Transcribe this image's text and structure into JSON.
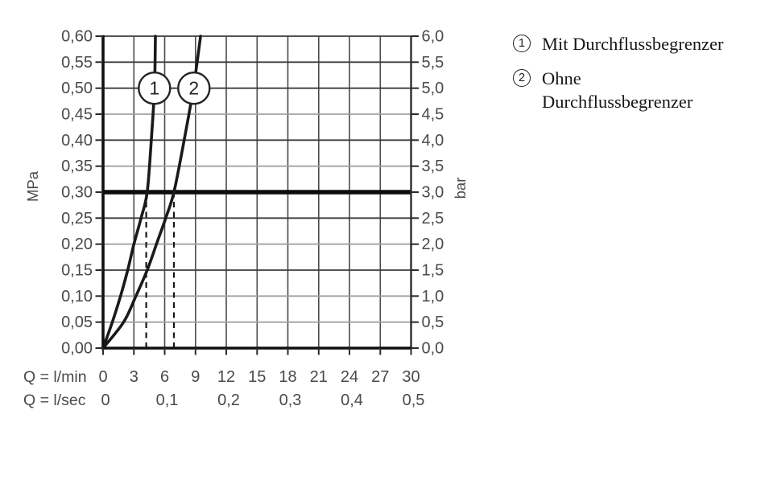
{
  "chart_data": {
    "type": "line",
    "x_axis_lmin": {
      "label": "Q = l/min",
      "range": [
        0,
        30
      ],
      "ticks": [
        "0",
        "3",
        "6",
        "9",
        "12",
        "15",
        "18",
        "21",
        "24",
        "27",
        "30"
      ]
    },
    "x_axis_lsec": {
      "label": "Q = l/sec",
      "ticks": [
        {
          "text": "0",
          "q": 0
        },
        {
          "text": "0,1",
          "q": 6
        },
        {
          "text": "0,2",
          "q": 12
        },
        {
          "text": "0,3",
          "q": 18
        },
        {
          "text": "0,4",
          "q": 24
        },
        {
          "text": "0,5",
          "q": 30
        }
      ]
    },
    "y_axis_left": {
      "label": "MPa",
      "range": [
        0,
        0.6
      ]
    },
    "y_axis_right": {
      "label": "bar",
      "range": [
        0,
        6
      ]
    },
    "gridlines_horizontal": [
      {
        "p": 0.6,
        "mpa": "0,60",
        "bar": "6,0",
        "shade": "dark"
      },
      {
        "p": 0.55,
        "mpa": "0,55",
        "bar": "5,5",
        "shade": "dark"
      },
      {
        "p": 0.5,
        "mpa": "0,50",
        "bar": "5,0",
        "shade": "dark"
      },
      {
        "p": 0.45,
        "mpa": "0,45",
        "bar": "4,5",
        "shade": "light"
      },
      {
        "p": 0.4,
        "mpa": "0,40",
        "bar": "4,0",
        "shade": "dark"
      },
      {
        "p": 0.35,
        "mpa": "0,35",
        "bar": "3,5",
        "shade": "light"
      },
      {
        "p": 0.3,
        "mpa": "0,30",
        "bar": "3,0",
        "shade": "thick"
      },
      {
        "p": 0.25,
        "mpa": "0,25",
        "bar": "2,5",
        "shade": "dark"
      },
      {
        "p": 0.2,
        "mpa": "0,20",
        "bar": "2,0",
        "shade": "light"
      },
      {
        "p": 0.15,
        "mpa": "0,15",
        "bar": "1,5",
        "shade": "dark"
      },
      {
        "p": 0.1,
        "mpa": "0,10",
        "bar": "1,0",
        "shade": "light"
      },
      {
        "p": 0.05,
        "mpa": "0,05",
        "bar": "0,5",
        "shade": "light"
      },
      {
        "p": 0.0,
        "mpa": "0,00",
        "bar": "0,0",
        "shade": "axis"
      }
    ],
    "series": [
      {
        "id": "1",
        "name": "Mit Durchflussbegrenzer",
        "points_q_mpa": [
          [
            0,
            0
          ],
          [
            0.9,
            0.05
          ],
          [
            1.7,
            0.1
          ],
          [
            2.4,
            0.15
          ],
          [
            3.0,
            0.2
          ],
          [
            3.7,
            0.25
          ],
          [
            4.3,
            0.3
          ],
          [
            4.7,
            0.4
          ],
          [
            5.0,
            0.5
          ],
          [
            5.1,
            0.6
          ]
        ],
        "marker": {
          "label": "1",
          "q": 5.0,
          "p": 0.5
        }
      },
      {
        "id": "2",
        "name": "Ohne Durchflussbegrenzer",
        "points_q_mpa": [
          [
            0,
            0
          ],
          [
            2.0,
            0.05
          ],
          [
            3.2,
            0.1
          ],
          [
            4.3,
            0.15
          ],
          [
            5.2,
            0.2
          ],
          [
            6.1,
            0.25
          ],
          [
            6.9,
            0.3
          ],
          [
            7.9,
            0.4
          ],
          [
            8.8,
            0.5
          ],
          [
            9.5,
            0.6
          ]
        ],
        "marker": {
          "label": "2",
          "q": 8.85,
          "p": 0.5
        }
      }
    ],
    "reference_line": {
      "p": 0.3
    },
    "dashed_guides": [
      {
        "q": 4.2,
        "to_p": 0.3
      },
      {
        "q": 6.9,
        "to_p": 0.3
      }
    ],
    "colors": {
      "curve": "#1a1a1a",
      "grid_dark": "#3c3c3c",
      "grid_light": "#a2a2a2",
      "grid_vertical": "#4a4a4a",
      "axis": "#101010",
      "reference": "#0d0d0d",
      "text": "#4a4a4a",
      "legend_text": "#161616"
    }
  },
  "legend": {
    "items": [
      {
        "marker": "1",
        "line1": "Mit Durchflussbegrenzer",
        "line2": ""
      },
      {
        "marker": "2",
        "line1": "Ohne",
        "line2": "Durchflussbegrenzer"
      }
    ]
  }
}
